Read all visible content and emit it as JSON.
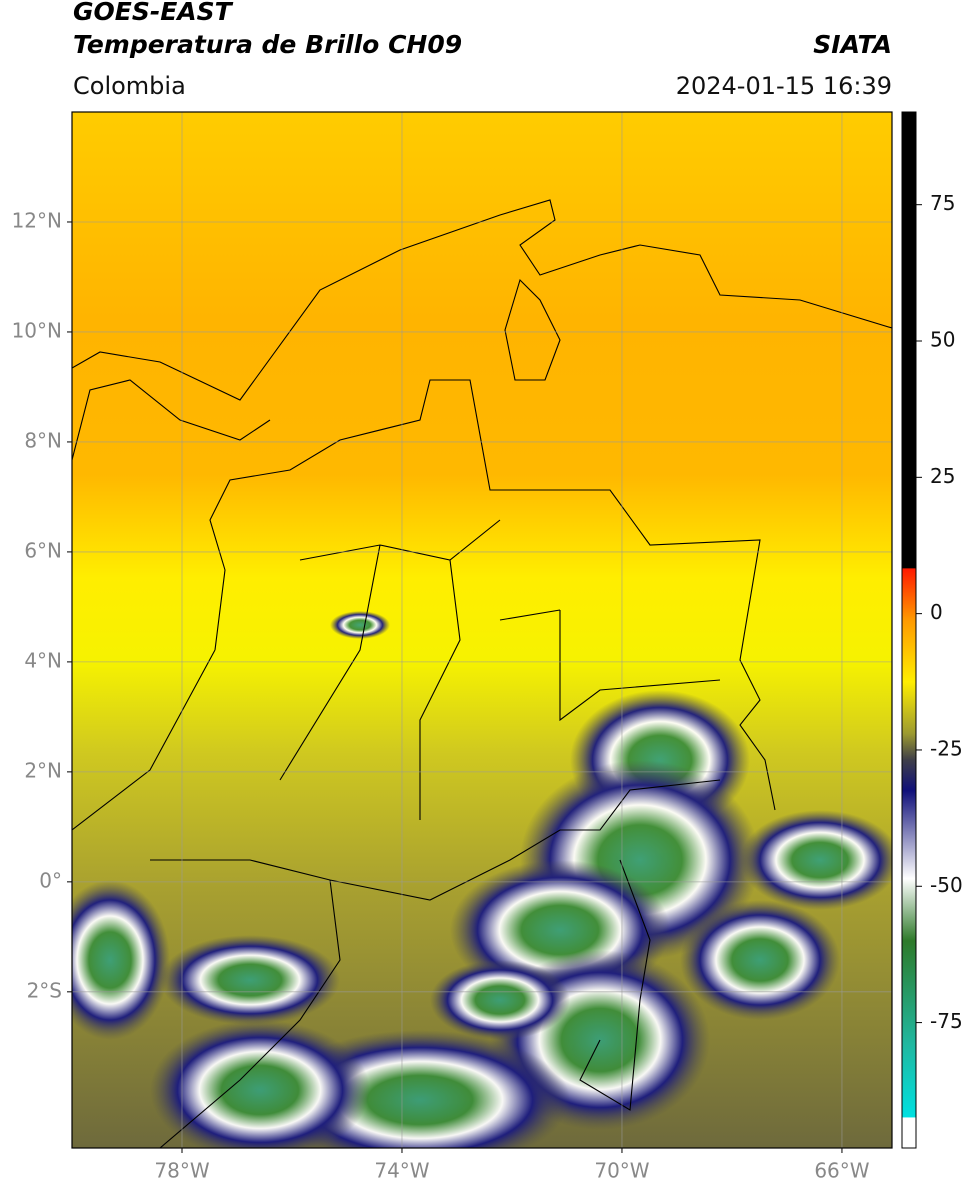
{
  "header": {
    "title": "GOES-EAST",
    "subtitle": "Temperatura de Brillo CH09",
    "source": "SIATA",
    "region": "Colombia",
    "datetime": "2024-01-15 16:39"
  },
  "map": {
    "lonlim": [
      -80,
      -65.09
    ],
    "latlim": [
      14,
      -4.84
    ],
    "lonticks": [
      {
        "value": -78,
        "label": "78°W"
      },
      {
        "value": -74,
        "label": "74°W"
      },
      {
        "value": -70,
        "label": "70°W"
      },
      {
        "value": -66,
        "label": "66°W"
      }
    ],
    "latticks": [
      {
        "value": 12,
        "label": "12°N"
      },
      {
        "value": 10,
        "label": "10°N"
      },
      {
        "value": 8,
        "label": "8°N"
      },
      {
        "value": 6,
        "label": "6°N"
      },
      {
        "value": 4,
        "label": "4°N"
      },
      {
        "value": 2,
        "label": "2°N"
      },
      {
        "value": 0,
        "label": "0°"
      },
      {
        "value": -2,
        "label": "2°S"
      }
    ]
  },
  "colorbar": {
    "clim": [
      -98,
      92
    ],
    "ticks": [
      75,
      50,
      25,
      0,
      -25,
      -50,
      -75
    ]
  }
}
